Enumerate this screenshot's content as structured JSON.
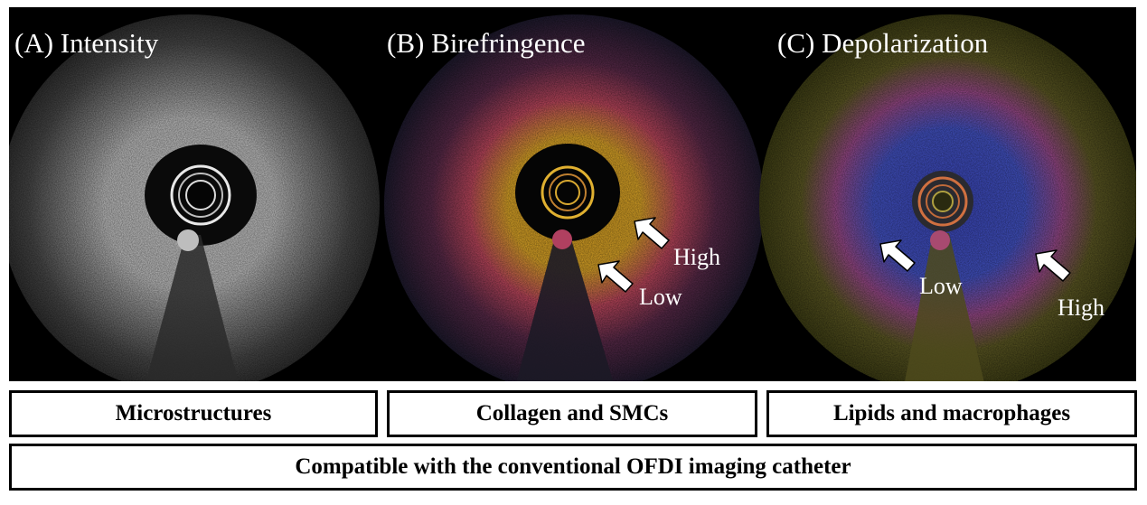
{
  "panels": [
    {
      "label": "(A) Intensity",
      "annotations": []
    },
    {
      "label": "(B) Birefringence",
      "annotations": [
        "High",
        "Low"
      ]
    },
    {
      "label": "(C) Depolarization",
      "annotations": [
        "Low",
        "High"
      ]
    }
  ],
  "captions": [
    "Microstructures",
    "Collagen and SMCs",
    "Lipids and macrophages"
  ],
  "footer": "Compatible with the conventional OFDI imaging catheter",
  "colors": {
    "background": "#000000",
    "intensity_tissue": "#d8d8d8",
    "birefringence_high": "#e8b020",
    "birefringence_mid": "#b8406a",
    "depolarization_low": "#4050c8",
    "depolarization_high": "#b84a6a",
    "depolarization_bg": "#5a5a1a"
  }
}
